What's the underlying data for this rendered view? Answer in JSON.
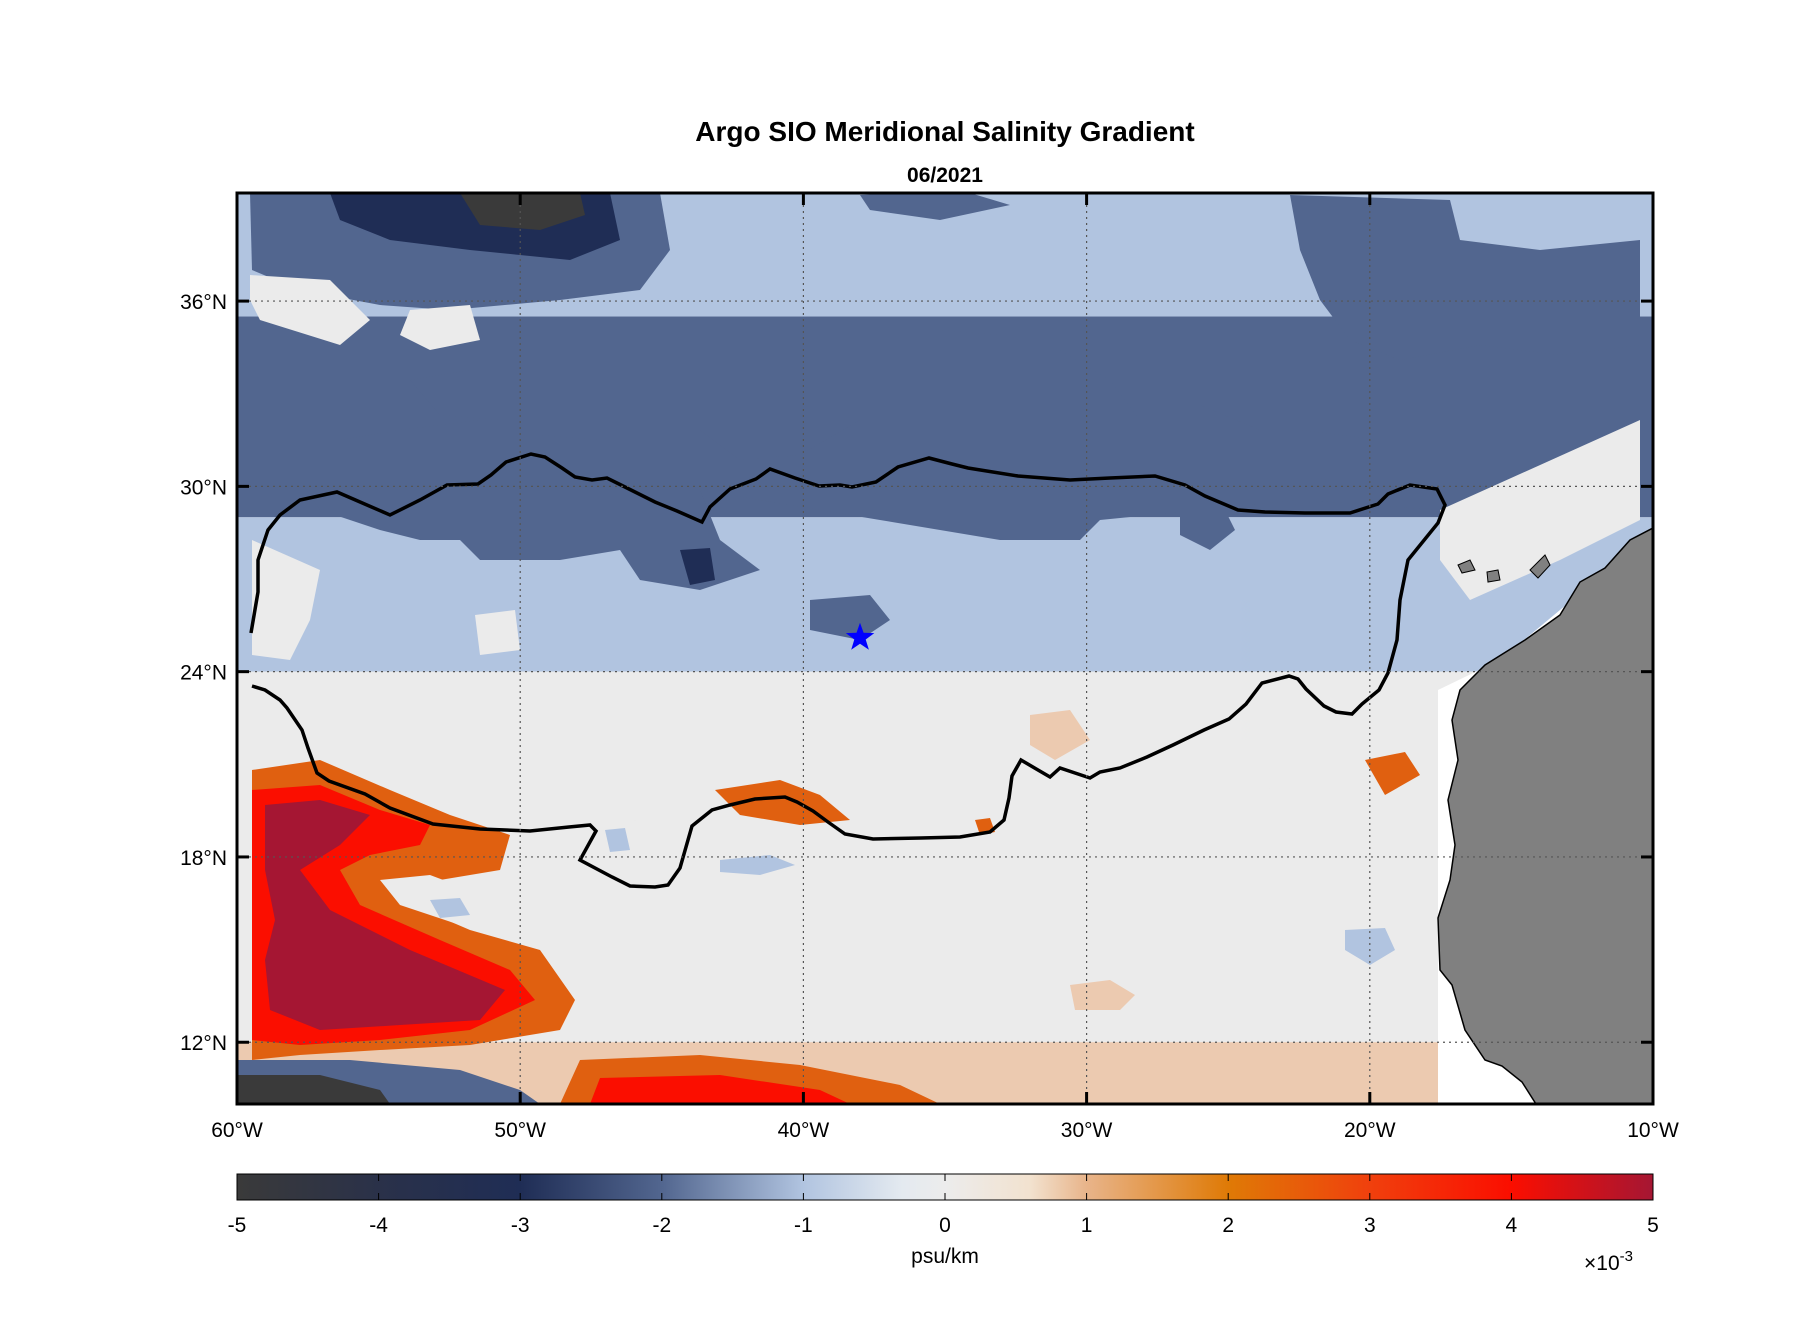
{
  "chart_data": {
    "type": "heatmap",
    "title": "Argo SIO Meridional Salinity Gradient",
    "subtitle": "06/2021",
    "x_axis": {
      "range": [
        -60,
        -10
      ],
      "ticks": [
        -60,
        -50,
        -40,
        -30,
        -20,
        -10
      ],
      "tick_labels": [
        "60°W",
        "50°W",
        "40°W",
        "30°W",
        "20°W",
        "10°W"
      ]
    },
    "y_axis": {
      "range": [
        10,
        39.5
      ],
      "ticks": [
        12,
        18,
        24,
        30,
        36
      ],
      "tick_labels": [
        "12°N",
        "18°N",
        "24°N",
        "30°N",
        "36°N"
      ]
    },
    "grid": "dotted",
    "colorbar": {
      "label": "psu/km",
      "range": [
        -5,
        5
      ],
      "ticks": [
        -5,
        -4,
        -3,
        -2,
        -1,
        0,
        1,
        2,
        3,
        4,
        5
      ],
      "tick_labels": [
        "-5",
        "-4",
        "-3",
        "-2",
        "-1",
        "0",
        "1",
        "2",
        "3",
        "4",
        "5"
      ],
      "multiplier_base": "×10",
      "multiplier_exp": "-3",
      "colors": [
        "#3a3a3a",
        "#1f2d55",
        "#52668f",
        "#b1c4e0",
        "#ebebeb",
        "#ebebeb",
        "#eccab0",
        "#e06010",
        "#fb0e00",
        "#a51633"
      ]
    },
    "bands": [
      {
        "lat_top": 39.5,
        "lat_bot": 35.5,
        "value": -1.3
      },
      {
        "lat_top": 35.5,
        "lat_bot": 29.0,
        "value": -2.1
      },
      {
        "lat_top": 29.0,
        "lat_bot": 24.0,
        "value": -1.2
      },
      {
        "lat_top": 24.0,
        "lat_bot": 22.0,
        "value": 0.2
      },
      {
        "lat_top": 22.0,
        "lat_bot": 12.0,
        "value": 0.9
      },
      {
        "lat_top": 12.0,
        "lat_bot": 10.0,
        "value": 1.8
      }
    ],
    "contour_label": "zero gradient contours",
    "marker": {
      "lon": -38.0,
      "lat": 25.1,
      "symbol": "star",
      "color": "#0000ff"
    },
    "land_color": "#808080"
  }
}
